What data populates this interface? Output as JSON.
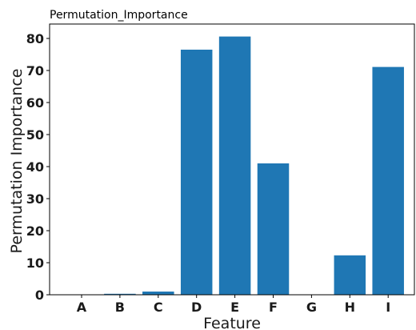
{
  "chart_data": {
    "type": "bar",
    "title": "Permutation_Importance",
    "xlabel": "Feature",
    "ylabel": "Permutation Importance",
    "categories": [
      "A",
      "B",
      "C",
      "D",
      "E",
      "F",
      "G",
      "H",
      "I"
    ],
    "values": [
      0.0,
      0.3,
      1.0,
      76.5,
      80.6,
      41.0,
      0.0,
      12.3,
      71.1
    ],
    "ylim": [
      0,
      84.5
    ],
    "yticks": [
      0,
      10,
      20,
      30,
      40,
      50,
      60,
      70,
      80
    ],
    "grid": false,
    "legend": "none",
    "bar_color": "#1f77b4"
  }
}
